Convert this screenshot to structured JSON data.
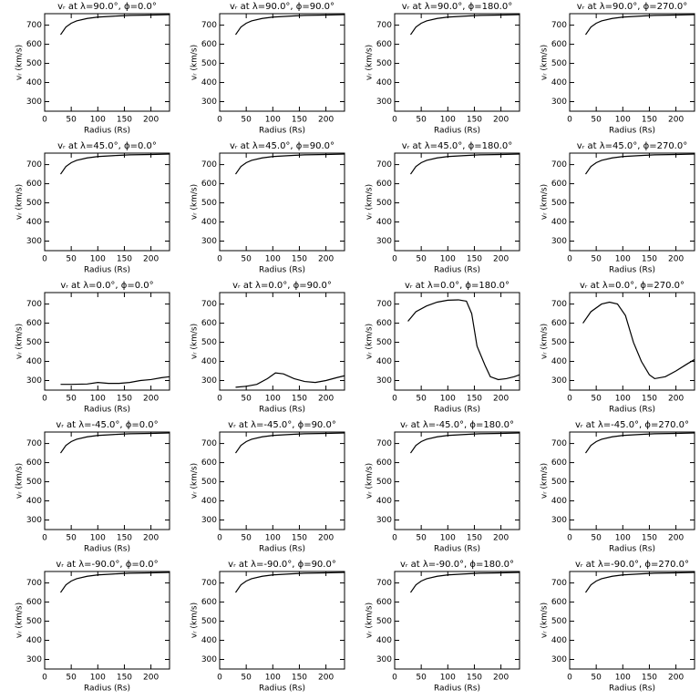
{
  "chart_data": [
    {
      "type": "line",
      "title": "vᵣ at λ=90.0°, ϕ=0.0°",
      "xlabel": "Radius (Rs)",
      "ylabel": "vᵣ (km/s)",
      "x": [
        30,
        40,
        50,
        60,
        80,
        100,
        130,
        160,
        200,
        235
      ],
      "values": [
        650,
        690,
        710,
        722,
        735,
        742,
        747,
        751,
        753,
        755
      ],
      "color": "#000000",
      "xlim": [
        0,
        235
      ],
      "ylim": [
        250,
        760
      ],
      "xticks": [
        0,
        50,
        100,
        150,
        200
      ],
      "yticks": [
        300,
        400,
        500,
        600,
        700
      ]
    },
    {
      "type": "line",
      "title": "vᵣ at λ=90.0°, ϕ=90.0°",
      "xlabel": "Radius (Rs)",
      "ylabel": "vᵣ (km/s)",
      "x": [
        30,
        40,
        50,
        60,
        80,
        100,
        130,
        160,
        200,
        235
      ],
      "values": [
        650,
        690,
        710,
        722,
        735,
        742,
        747,
        751,
        753,
        755
      ],
      "color": "#000000",
      "xlim": [
        0,
        235
      ],
      "ylim": [
        250,
        760
      ],
      "xticks": [
        0,
        50,
        100,
        150,
        200
      ],
      "yticks": [
        300,
        400,
        500,
        600,
        700
      ]
    },
    {
      "type": "line",
      "title": "vᵣ at λ=90.0°, ϕ=180.0°",
      "xlabel": "Radius (Rs)",
      "ylabel": "vᵣ (km/s)",
      "x": [
        30,
        40,
        50,
        60,
        80,
        100,
        130,
        160,
        200,
        235
      ],
      "values": [
        650,
        690,
        710,
        722,
        735,
        742,
        747,
        751,
        753,
        755
      ],
      "color": "#000000",
      "xlim": [
        0,
        235
      ],
      "ylim": [
        250,
        760
      ],
      "xticks": [
        0,
        50,
        100,
        150,
        200
      ],
      "yticks": [
        300,
        400,
        500,
        600,
        700
      ]
    },
    {
      "type": "line",
      "title": "vᵣ at λ=90.0°, ϕ=270.0°",
      "xlabel": "Radius (Rs)",
      "ylabel": "vᵣ (km/s)",
      "x": [
        30,
        40,
        50,
        60,
        80,
        100,
        130,
        160,
        200,
        235
      ],
      "values": [
        650,
        690,
        710,
        722,
        735,
        742,
        747,
        751,
        753,
        755
      ],
      "color": "#000000",
      "xlim": [
        0,
        235
      ],
      "ylim": [
        250,
        760
      ],
      "xticks": [
        0,
        50,
        100,
        150,
        200
      ],
      "yticks": [
        300,
        400,
        500,
        600,
        700
      ]
    },
    {
      "type": "line",
      "title": "vᵣ at λ=45.0°, ϕ=0.0°",
      "xlabel": "Radius (Rs)",
      "ylabel": "vᵣ (km/s)",
      "x": [
        30,
        40,
        50,
        60,
        80,
        100,
        130,
        160,
        200,
        235
      ],
      "values": [
        650,
        690,
        710,
        722,
        735,
        742,
        747,
        751,
        753,
        755
      ],
      "color": "#000000",
      "xlim": [
        0,
        235
      ],
      "ylim": [
        250,
        760
      ],
      "xticks": [
        0,
        50,
        100,
        150,
        200
      ],
      "yticks": [
        300,
        400,
        500,
        600,
        700
      ]
    },
    {
      "type": "line",
      "title": "vᵣ at λ=45.0°, ϕ=90.0°",
      "xlabel": "Radius (Rs)",
      "ylabel": "vᵣ (km/s)",
      "x": [
        30,
        40,
        50,
        60,
        80,
        100,
        130,
        160,
        200,
        235
      ],
      "values": [
        650,
        690,
        710,
        722,
        735,
        742,
        747,
        751,
        753,
        755
      ],
      "color": "#000000",
      "xlim": [
        0,
        235
      ],
      "ylim": [
        250,
        760
      ],
      "xticks": [
        0,
        50,
        100,
        150,
        200
      ],
      "yticks": [
        300,
        400,
        500,
        600,
        700
      ]
    },
    {
      "type": "line",
      "title": "vᵣ at λ=45.0°, ϕ=180.0°",
      "xlabel": "Radius (Rs)",
      "ylabel": "vᵣ (km/s)",
      "x": [
        30,
        40,
        50,
        60,
        80,
        100,
        130,
        160,
        200,
        235
      ],
      "values": [
        650,
        690,
        710,
        722,
        735,
        742,
        747,
        751,
        753,
        755
      ],
      "color": "#000000",
      "xlim": [
        0,
        235
      ],
      "ylim": [
        250,
        760
      ],
      "xticks": [
        0,
        50,
        100,
        150,
        200
      ],
      "yticks": [
        300,
        400,
        500,
        600,
        700
      ]
    },
    {
      "type": "line",
      "title": "vᵣ at λ=45.0°, ϕ=270.0°",
      "xlabel": "Radius (Rs)",
      "ylabel": "vᵣ (km/s)",
      "x": [
        30,
        40,
        50,
        60,
        80,
        100,
        130,
        160,
        200,
        235
      ],
      "values": [
        650,
        690,
        710,
        722,
        735,
        742,
        747,
        751,
        753,
        755
      ],
      "color": "#000000",
      "xlim": [
        0,
        235
      ],
      "ylim": [
        250,
        760
      ],
      "xticks": [
        0,
        50,
        100,
        150,
        200
      ],
      "yticks": [
        300,
        400,
        500,
        600,
        700
      ]
    },
    {
      "type": "line",
      "title": "vᵣ at λ=0.0°, ϕ=0.0°",
      "xlabel": "Radius (Rs)",
      "ylabel": "vᵣ (km/s)",
      "x": [
        30,
        50,
        80,
        100,
        120,
        140,
        160,
        180,
        200,
        220,
        235
      ],
      "values": [
        280,
        280,
        282,
        290,
        285,
        285,
        290,
        300,
        305,
        315,
        320
      ],
      "color": "#000000",
      "xlim": [
        0,
        235
      ],
      "ylim": [
        250,
        760
      ],
      "xticks": [
        0,
        50,
        100,
        150,
        200
      ],
      "yticks": [
        300,
        400,
        500,
        600,
        700
      ]
    },
    {
      "type": "line",
      "title": "vᵣ at λ=0.0°, ϕ=90.0°",
      "xlabel": "Radius (Rs)",
      "ylabel": "vᵣ (km/s)",
      "x": [
        30,
        50,
        70,
        90,
        105,
        120,
        140,
        160,
        180,
        200,
        220,
        235
      ],
      "values": [
        265,
        270,
        280,
        310,
        340,
        335,
        310,
        295,
        290,
        300,
        315,
        325
      ],
      "color": "#000000",
      "xlim": [
        0,
        235
      ],
      "ylim": [
        250,
        760
      ],
      "xticks": [
        0,
        50,
        100,
        150,
        200
      ],
      "yticks": [
        300,
        400,
        500,
        600,
        700
      ]
    },
    {
      "type": "line",
      "title": "vᵣ at λ=0.0°, ϕ=180.0°",
      "xlabel": "Radius (Rs)",
      "ylabel": "vᵣ (km/s)",
      "x": [
        25,
        40,
        60,
        80,
        100,
        120,
        135,
        145,
        155,
        170,
        180,
        195,
        210,
        225,
        235
      ],
      "values": [
        610,
        660,
        690,
        710,
        720,
        722,
        715,
        650,
        480,
        380,
        320,
        305,
        310,
        320,
        330
      ],
      "color": "#000000",
      "xlim": [
        0,
        235
      ],
      "ylim": [
        250,
        760
      ],
      "xticks": [
        0,
        50,
        100,
        150,
        200
      ],
      "yticks": [
        300,
        400,
        500,
        600,
        700
      ]
    },
    {
      "type": "line",
      "title": "vᵣ at λ=0.0°, ϕ=270.0°",
      "xlabel": "Radius (Rs)",
      "ylabel": "vᵣ (km/s)",
      "x": [
        25,
        40,
        60,
        75,
        90,
        105,
        120,
        135,
        150,
        160,
        180,
        200,
        220,
        235
      ],
      "values": [
        600,
        660,
        700,
        710,
        700,
        640,
        500,
        400,
        330,
        310,
        320,
        350,
        385,
        410
      ],
      "color": "#000000",
      "xlim": [
        0,
        235
      ],
      "ylim": [
        250,
        760
      ],
      "xticks": [
        0,
        50,
        100,
        150,
        200
      ],
      "yticks": [
        300,
        400,
        500,
        600,
        700
      ]
    },
    {
      "type": "line",
      "title": "vᵣ at λ=-45.0°, ϕ=0.0°",
      "xlabel": "Radius (Rs)",
      "ylabel": "vᵣ (km/s)",
      "x": [
        30,
        40,
        50,
        60,
        80,
        100,
        130,
        160,
        200,
        235
      ],
      "values": [
        650,
        690,
        710,
        722,
        735,
        742,
        747,
        751,
        753,
        755
      ],
      "color": "#000000",
      "xlim": [
        0,
        235
      ],
      "ylim": [
        250,
        760
      ],
      "xticks": [
        0,
        50,
        100,
        150,
        200
      ],
      "yticks": [
        300,
        400,
        500,
        600,
        700
      ]
    },
    {
      "type": "line",
      "title": "vᵣ at λ=-45.0°, ϕ=90.0°",
      "xlabel": "Radius (Rs)",
      "ylabel": "vᵣ (km/s)",
      "x": [
        30,
        40,
        50,
        60,
        80,
        100,
        130,
        160,
        200,
        235
      ],
      "values": [
        650,
        690,
        710,
        722,
        735,
        742,
        747,
        751,
        753,
        755
      ],
      "color": "#000000",
      "xlim": [
        0,
        235
      ],
      "ylim": [
        250,
        760
      ],
      "xticks": [
        0,
        50,
        100,
        150,
        200
      ],
      "yticks": [
        300,
        400,
        500,
        600,
        700
      ]
    },
    {
      "type": "line",
      "title": "vᵣ at λ=-45.0°, ϕ=180.0°",
      "xlabel": "Radius (Rs)",
      "ylabel": "vᵣ (km/s)",
      "x": [
        30,
        40,
        50,
        60,
        80,
        100,
        130,
        160,
        200,
        235
      ],
      "values": [
        650,
        690,
        710,
        722,
        735,
        742,
        747,
        751,
        753,
        755
      ],
      "color": "#000000",
      "xlim": [
        0,
        235
      ],
      "ylim": [
        250,
        760
      ],
      "xticks": [
        0,
        50,
        100,
        150,
        200
      ],
      "yticks": [
        300,
        400,
        500,
        600,
        700
      ]
    },
    {
      "type": "line",
      "title": "vᵣ at λ=-45.0°, ϕ=270.0°",
      "xlabel": "Radius (Rs)",
      "ylabel": "vᵣ (km/s)",
      "x": [
        30,
        40,
        50,
        60,
        80,
        100,
        130,
        160,
        200,
        235
      ],
      "values": [
        650,
        690,
        710,
        722,
        735,
        742,
        747,
        751,
        753,
        755
      ],
      "color": "#000000",
      "xlim": [
        0,
        235
      ],
      "ylim": [
        250,
        760
      ],
      "xticks": [
        0,
        50,
        100,
        150,
        200
      ],
      "yticks": [
        300,
        400,
        500,
        600,
        700
      ]
    },
    {
      "type": "line",
      "title": "vᵣ at λ=-90.0°, ϕ=0.0°",
      "xlabel": "Radius (Rs)",
      "ylabel": "vᵣ (km/s)",
      "x": [
        30,
        40,
        50,
        60,
        80,
        100,
        130,
        160,
        200,
        235
      ],
      "values": [
        650,
        690,
        710,
        722,
        735,
        742,
        747,
        751,
        753,
        755
      ],
      "color": "#000000",
      "xlim": [
        0,
        235
      ],
      "ylim": [
        250,
        760
      ],
      "xticks": [
        0,
        50,
        100,
        150,
        200
      ],
      "yticks": [
        300,
        400,
        500,
        600,
        700
      ]
    },
    {
      "type": "line",
      "title": "vᵣ at λ=-90.0°, ϕ=90.0°",
      "xlabel": "Radius (Rs)",
      "ylabel": "vᵣ (km/s)",
      "x": [
        30,
        40,
        50,
        60,
        80,
        100,
        130,
        160,
        200,
        235
      ],
      "values": [
        650,
        690,
        710,
        722,
        735,
        742,
        747,
        751,
        753,
        755
      ],
      "color": "#000000",
      "xlim": [
        0,
        235
      ],
      "ylim": [
        250,
        760
      ],
      "xticks": [
        0,
        50,
        100,
        150,
        200
      ],
      "yticks": [
        300,
        400,
        500,
        600,
        700
      ]
    },
    {
      "type": "line",
      "title": "vᵣ at λ=-90.0°, ϕ=180.0°",
      "xlabel": "Radius (Rs)",
      "ylabel": "vᵣ (km/s)",
      "x": [
        30,
        40,
        50,
        60,
        80,
        100,
        130,
        160,
        200,
        235
      ],
      "values": [
        650,
        690,
        710,
        722,
        735,
        742,
        747,
        751,
        753,
        755
      ],
      "color": "#000000",
      "xlim": [
        0,
        235
      ],
      "ylim": [
        250,
        760
      ],
      "xticks": [
        0,
        50,
        100,
        150,
        200
      ],
      "yticks": [
        300,
        400,
        500,
        600,
        700
      ]
    },
    {
      "type": "line",
      "title": "vᵣ at λ=-90.0°, ϕ=270.0°",
      "xlabel": "Radius (Rs)",
      "ylabel": "vᵣ (km/s)",
      "x": [
        30,
        40,
        50,
        60,
        80,
        100,
        130,
        160,
        200,
        235
      ],
      "values": [
        650,
        690,
        710,
        722,
        735,
        742,
        747,
        751,
        753,
        755
      ],
      "color": "#000000",
      "xlim": [
        0,
        235
      ],
      "ylim": [
        250,
        760
      ],
      "xticks": [
        0,
        50,
        100,
        150,
        200
      ],
      "yticks": [
        300,
        400,
        500,
        600,
        700
      ]
    }
  ]
}
